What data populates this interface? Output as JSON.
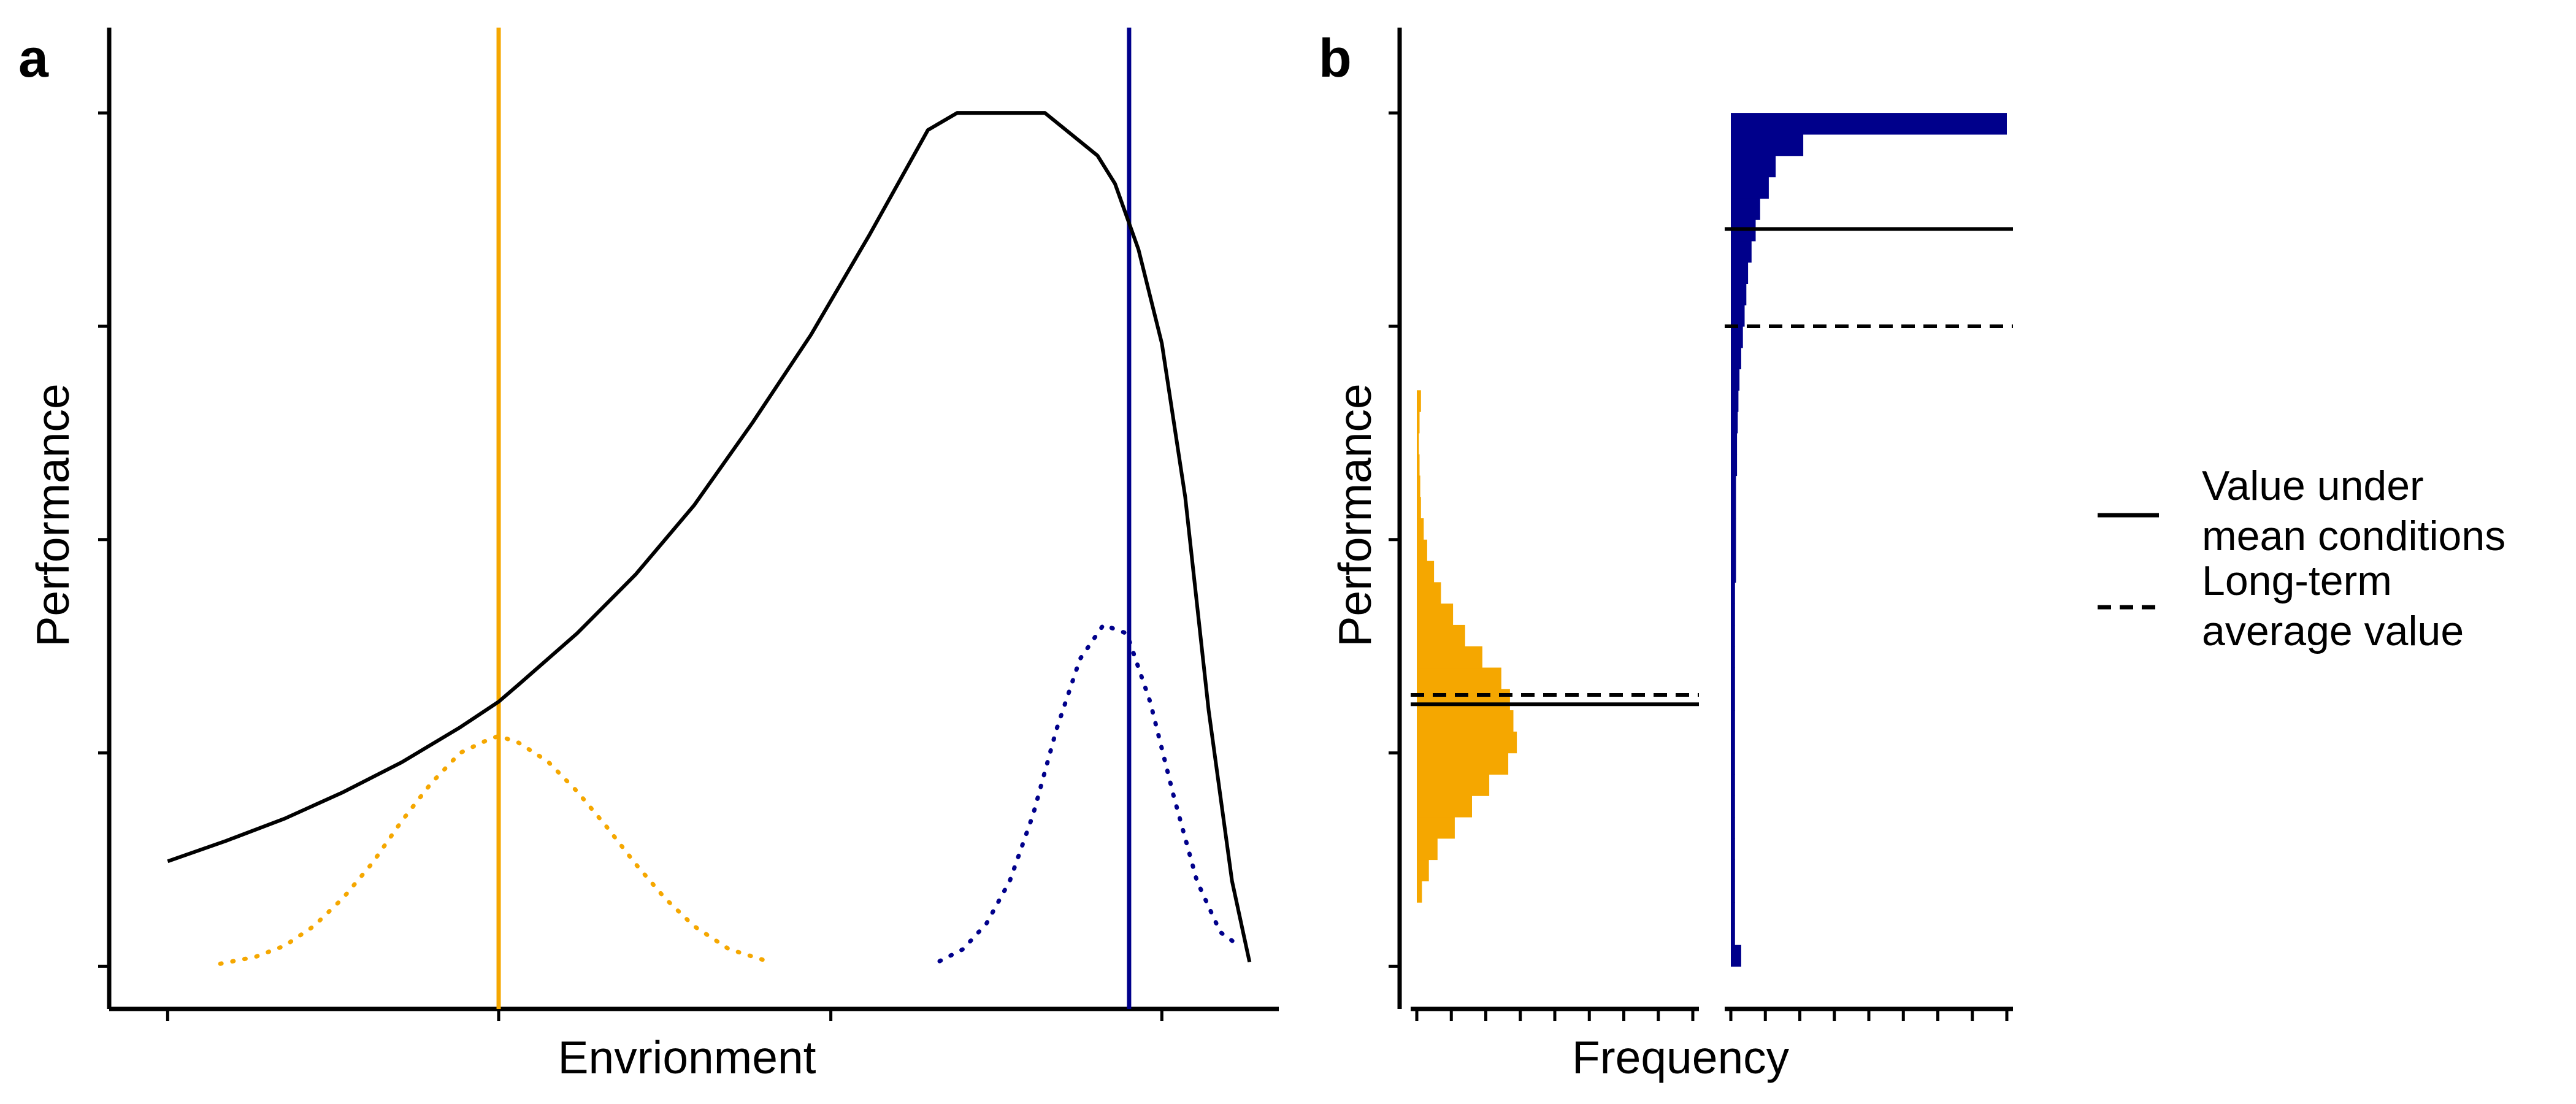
{
  "chart_data": [
    {
      "panel": "a",
      "type": "line",
      "xlabel": "Envrionment",
      "ylabel": "Performance",
      "xlim": [
        0,
        10
      ],
      "ylim": [
        -0.05,
        1.1
      ],
      "x_ticks": [
        0.5,
        3.33,
        6.17,
        9.0
      ],
      "y_ticks": [
        0,
        0.25,
        0.5,
        0.75,
        1.0
      ],
      "curve": {
        "name": "performance curve",
        "color": "#000000",
        "x": [
          0.5,
          1.0,
          1.5,
          2.0,
          2.5,
          3.0,
          3.33,
          3.5,
          4.0,
          4.5,
          5.0,
          5.5,
          6.0,
          6.5,
          7.0,
          7.25,
          7.5,
          8.0,
          8.45,
          8.6,
          8.8,
          9.0,
          9.2,
          9.4,
          9.6,
          9.75
        ],
        "y": [
          0.123,
          0.147,
          0.173,
          0.204,
          0.239,
          0.28,
          0.31,
          0.33,
          0.39,
          0.459,
          0.54,
          0.637,
          0.74,
          0.857,
          0.98,
          1.0,
          1.0,
          1.0,
          0.95,
          0.917,
          0.84,
          0.73,
          0.55,
          0.3,
          0.1,
          0.005
        ]
      },
      "distributions": [
        {
          "name": "orange environment",
          "color": "#F5A700",
          "style": "dotted",
          "x": [
            0.95,
            1.25,
            1.5,
            1.75,
            2.0,
            2.25,
            2.5,
            2.75,
            3.0,
            3.2,
            3.33,
            3.5,
            3.75,
            4.0,
            4.25,
            4.5,
            4.75,
            5.0,
            5.3,
            5.65
          ],
          "y": [
            0.003,
            0.011,
            0.024,
            0.047,
            0.08,
            0.121,
            0.17,
            0.214,
            0.25,
            0.263,
            0.27,
            0.262,
            0.24,
            0.205,
            0.164,
            0.12,
            0.08,
            0.047,
            0.02,
            0.005
          ]
        },
        {
          "name": "blue environment",
          "color": "#00008B",
          "style": "dotted",
          "x": [
            7.1,
            7.3,
            7.5,
            7.7,
            7.9,
            8.1,
            8.3,
            8.5,
            8.7,
            8.9,
            9.1,
            9.3,
            9.5,
            9.65
          ],
          "y": [
            0.006,
            0.02,
            0.05,
            0.1,
            0.178,
            0.278,
            0.36,
            0.4,
            0.39,
            0.31,
            0.2,
            0.1,
            0.04,
            0.025
          ]
        }
      ],
      "vlines": [
        {
          "name": "orange mean",
          "x": 3.33,
          "color": "#F5A700"
        },
        {
          "name": "blue mean",
          "x": 8.72,
          "color": "#00008B"
        }
      ]
    },
    {
      "panel": "b",
      "type": "histogram",
      "xlabel": "Frequency",
      "ylabel": "Performance",
      "ylim": [
        -0.05,
        1.1
      ],
      "y_ticks": [
        0,
        0.25,
        0.5,
        0.75,
        1.0
      ],
      "facets": [
        {
          "name": "orange",
          "color": "#F5A700",
          "bin_width": 0.025,
          "x_ticks": [
            0,
            1,
            2,
            3,
            4,
            5,
            6,
            7,
            8
          ],
          "xlim": [
            0,
            8
          ],
          "bins_bottom": [
            0.075,
            0.1,
            0.125,
            0.15,
            0.175,
            0.2,
            0.225,
            0.25,
            0.275,
            0.3,
            0.325,
            0.35,
            0.375,
            0.4,
            0.425,
            0.45,
            0.475,
            0.5,
            0.525,
            0.55,
            0.575,
            0.6,
            0.625,
            0.65
          ],
          "counts": [
            0.15,
            0.35,
            0.6,
            1.1,
            1.6,
            2.1,
            2.65,
            2.9,
            2.8,
            2.7,
            2.45,
            1.9,
            1.4,
            1.05,
            0.7,
            0.5,
            0.3,
            0.2,
            0.12,
            0.1,
            0.08,
            0.06,
            0.08,
            0.12
          ],
          "hline_mean_conditions": 0.307,
          "hline_long_term_average": 0.318
        },
        {
          "name": "blue",
          "color": "#00008B",
          "bin_width": 0.025,
          "x_ticks": [
            0,
            1,
            2,
            3,
            4,
            5,
            6,
            7,
            8
          ],
          "xlim": [
            0,
            8
          ],
          "bins_bottom": [
            0.0,
            0.025,
            0.05,
            0.075,
            0.1,
            0.125,
            0.15,
            0.175,
            0.2,
            0.225,
            0.25,
            0.275,
            0.3,
            0.325,
            0.35,
            0.375,
            0.4,
            0.425,
            0.45,
            0.475,
            0.5,
            0.525,
            0.55,
            0.575,
            0.6,
            0.625,
            0.65,
            0.675,
            0.7,
            0.725,
            0.75,
            0.775,
            0.8,
            0.825,
            0.85,
            0.875,
            0.9,
            0.925,
            0.95,
            0.975
          ],
          "counts": [
            0.3,
            0.12,
            0.12,
            0.12,
            0.12,
            0.12,
            0.12,
            0.12,
            0.12,
            0.12,
            0.12,
            0.12,
            0.12,
            0.12,
            0.12,
            0.12,
            0.12,
            0.12,
            0.15,
            0.15,
            0.15,
            0.15,
            0.15,
            0.18,
            0.18,
            0.2,
            0.22,
            0.25,
            0.3,
            0.35,
            0.4,
            0.45,
            0.5,
            0.6,
            0.72,
            0.85,
            1.1,
            1.3,
            2.1,
            8.0
          ],
          "hline_mean_conditions": 0.864,
          "hline_long_term_average": 0.75
        }
      ],
      "legend": {
        "placement": "right",
        "entries": [
          {
            "style": "solid",
            "label_line1": "Value under",
            "label_line2": "mean conditions"
          },
          {
            "style": "dashed",
            "label_line1": "Long-term",
            "label_line2": "average value"
          }
        ]
      }
    }
  ]
}
